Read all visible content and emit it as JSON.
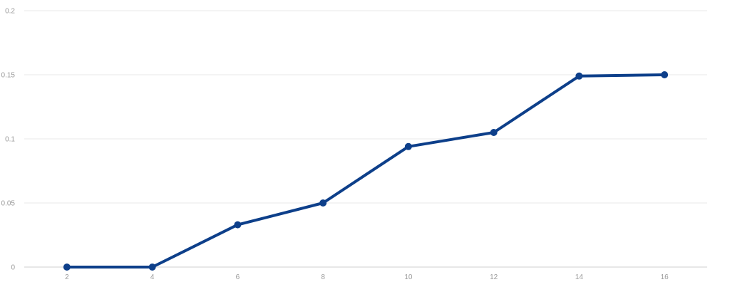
{
  "chart_data": {
    "type": "line",
    "title": "",
    "xlabel": "",
    "ylabel": "",
    "x": [
      2,
      4,
      6,
      8,
      10,
      12,
      14,
      16
    ],
    "series": [
      {
        "values": [
          0,
          0,
          0.033,
          0.05,
          0.094,
          0.105,
          0.149,
          0.15
        ]
      }
    ],
    "xticks": [
      "2",
      "4",
      "6",
      "8",
      "10",
      "12",
      "14",
      "16"
    ],
    "yticks": [
      "0",
      "0.05",
      "0.1",
      "0.15",
      "0.2"
    ],
    "ylim": [
      0,
      0.2
    ],
    "xlim": [
      1,
      17
    ],
    "grid": true,
    "legend": "none",
    "colors": {
      "line": "#0d3f8a",
      "grid": "#e9e9e9",
      "axis": "#cfcfcf",
      "tick": "#9a9a9a"
    }
  }
}
